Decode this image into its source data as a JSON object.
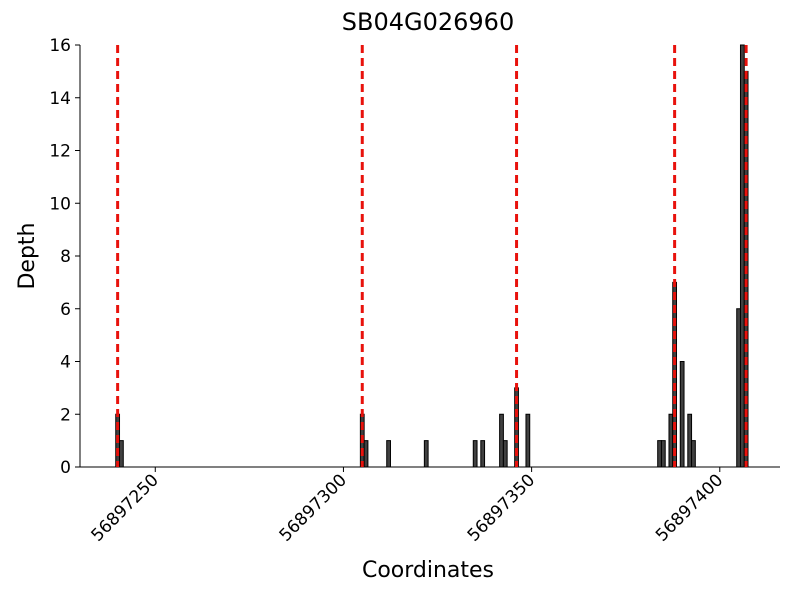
{
  "chart_data": {
    "type": "bar",
    "title": "SB04G026960",
    "xlabel": "Coordinates",
    "ylabel": "Depth",
    "x": [
      56897240,
      56897241,
      56897305,
      56897306,
      56897312,
      56897322,
      56897335,
      56897337,
      56897342,
      56897343,
      56897346,
      56897349,
      56897384,
      56897385,
      56897387,
      56897388,
      56897390,
      56897392,
      56897393,
      56897405,
      56897406,
      56897407
    ],
    "values": [
      2,
      1,
      2,
      1,
      1,
      1,
      1,
      1,
      2,
      1,
      3,
      2,
      1,
      1,
      2,
      7,
      4,
      2,
      1,
      6,
      16,
      15
    ],
    "color": "#404040",
    "vlines": [
      56897240,
      56897305,
      56897346,
      56897388,
      56897407
    ],
    "vline_color": "#e8120c",
    "xlim": [
      56897230,
      56897416
    ],
    "xticks": [
      56897250,
      56897300,
      56897350,
      56897400
    ],
    "ylim": [
      0,
      16
    ],
    "yticks": [
      0,
      2,
      4,
      6,
      8,
      10,
      12,
      14,
      16
    ],
    "grid": false
  }
}
